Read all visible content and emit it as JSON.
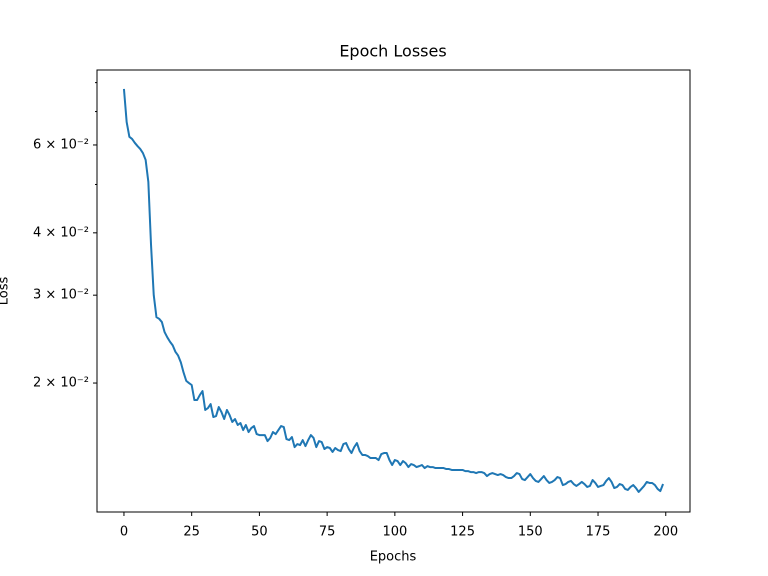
{
  "chart_data": {
    "type": "line",
    "title": "Epoch Losses",
    "xlabel": "Epochs",
    "ylabel": "Loss",
    "yscale": "log",
    "x": [
      0,
      1,
      2,
      3,
      4,
      5,
      6,
      7,
      8,
      9,
      10,
      11,
      12,
      13,
      14,
      15,
      16,
      17,
      18,
      19,
      20,
      21,
      22,
      23,
      24,
      25,
      26,
      27,
      28,
      29,
      30,
      31,
      32,
      33,
      34,
      35,
      36,
      37,
      38,
      39,
      40,
      41,
      42,
      43,
      44,
      45,
      46,
      47,
      48,
      49,
      50,
      51,
      52,
      53,
      54,
      55,
      56,
      57,
      58,
      59,
      60,
      61,
      62,
      63,
      64,
      65,
      66,
      67,
      68,
      69,
      70,
      71,
      72,
      73,
      74,
      75,
      76,
      77,
      78,
      79,
      80,
      81,
      82,
      83,
      84,
      85,
      86,
      87,
      88,
      89,
      90,
      91,
      92,
      93,
      94,
      95,
      96,
      97,
      98,
      99,
      100,
      101,
      102,
      103,
      104,
      105,
      106,
      107,
      108,
      109,
      110,
      111,
      112,
      113,
      114,
      115,
      116,
      117,
      118,
      119,
      120,
      121,
      122,
      123,
      124,
      125,
      126,
      127,
      128,
      129,
      130,
      131,
      132,
      133,
      134,
      135,
      136,
      137,
      138,
      139,
      140,
      141,
      142,
      143,
      144,
      145,
      146,
      147,
      148,
      149,
      150,
      151,
      152,
      153,
      154,
      155,
      156,
      157,
      158,
      159,
      160,
      161,
      162,
      163,
      164,
      165,
      166,
      167,
      168,
      169,
      170,
      171,
      172,
      173,
      174,
      175,
      176,
      177,
      178,
      179,
      180,
      181,
      182,
      183,
      184,
      185,
      186,
      187,
      188,
      189,
      190,
      191,
      192,
      193,
      194,
      195,
      196,
      197,
      198,
      199
    ],
    "series": [
      {
        "color": "#1f77b4",
        "values": [
          0.0777,
          0.0667,
          0.0623,
          0.0617,
          0.0606,
          0.0597,
          0.0589,
          0.0578,
          0.056,
          0.0506,
          0.0378,
          0.03,
          0.0271,
          0.0269,
          0.0265,
          0.0253,
          0.0247,
          0.0242,
          0.0238,
          0.0231,
          0.0227,
          0.022,
          0.021,
          0.0202,
          0.02,
          0.01982,
          0.01849,
          0.01849,
          0.01892,
          0.01927,
          0.01766,
          0.01782,
          0.01815,
          0.0171,
          0.01717,
          0.0179,
          0.01749,
          0.01694,
          0.01766,
          0.01725,
          0.01671,
          0.01694,
          0.01648,
          0.01663,
          0.0161,
          0.01648,
          0.01595,
          0.01625,
          0.0164,
          0.0158,
          0.01573,
          0.01573,
          0.01573,
          0.0153,
          0.01552,
          0.01595,
          0.0158,
          0.0161,
          0.0164,
          0.01632,
          0.01544,
          0.01537,
          0.01559,
          0.01488,
          0.01509,
          0.01502,
          0.01537,
          0.01495,
          0.01537,
          0.01573,
          0.01552,
          0.01488,
          0.0153,
          0.01523,
          0.01475,
          0.01488,
          0.01482,
          0.01455,
          0.01482,
          0.01468,
          0.01461,
          0.01509,
          0.01516,
          0.01475,
          0.01448,
          0.01488,
          0.01516,
          0.01461,
          0.01435,
          0.01435,
          0.01428,
          0.01415,
          0.01415,
          0.01415,
          0.01402,
          0.01441,
          0.01448,
          0.01448,
          0.01402,
          0.0137,
          0.01402,
          0.01395,
          0.0137,
          0.01395,
          0.01382,
          0.01357,
          0.01376,
          0.0137,
          0.01357,
          0.01363,
          0.0137,
          0.01351,
          0.01363,
          0.01357,
          0.01357,
          0.01351,
          0.01351,
          0.01351,
          0.01351,
          0.01345,
          0.01345,
          0.01339,
          0.01339,
          0.01339,
          0.01339,
          0.01339,
          0.01332,
          0.01332,
          0.01326,
          0.01326,
          0.0132,
          0.01326,
          0.01326,
          0.0132,
          0.01302,
          0.01314,
          0.0132,
          0.01314,
          0.01308,
          0.01314,
          0.01308,
          0.01296,
          0.0129,
          0.0129,
          0.01302,
          0.0132,
          0.01314,
          0.01284,
          0.01278,
          0.01296,
          0.01314,
          0.0129,
          0.01273,
          0.01267,
          0.01284,
          0.01302,
          0.01278,
          0.01261,
          0.01267,
          0.01278,
          0.01296,
          0.0129,
          0.01249,
          0.01255,
          0.01267,
          0.01273,
          0.01255,
          0.01244,
          0.01255,
          0.01267,
          0.01255,
          0.01238,
          0.01244,
          0.01278,
          0.01261,
          0.01238,
          0.01244,
          0.01249,
          0.01273,
          0.0129,
          0.01267,
          0.01232,
          0.01238,
          0.01255,
          0.01249,
          0.01227,
          0.01221,
          0.01238,
          0.01249,
          0.01232,
          0.0121,
          0.01227,
          0.01244,
          0.01267,
          0.01261,
          0.01261,
          0.01249,
          0.01227,
          0.01215,
          0.01255
        ]
      }
    ],
    "xlim": [
      -9.95,
      208.95
    ],
    "xticks": [
      0,
      25,
      50,
      75,
      100,
      125,
      150,
      175,
      200
    ],
    "ylim": [
      0.01103,
      0.0848
    ],
    "yticks": [
      {
        "value": 0.02,
        "label": "2 × 10⁻²"
      },
      {
        "value": 0.03,
        "label": "3 × 10⁻²"
      },
      {
        "value": 0.04,
        "label": "4 × 10⁻²"
      },
      {
        "value": 0.06,
        "label": "6 × 10⁻²"
      }
    ],
    "yticks_minor": [
      0.05,
      0.07,
      0.08
    ],
    "grid": false
  }
}
